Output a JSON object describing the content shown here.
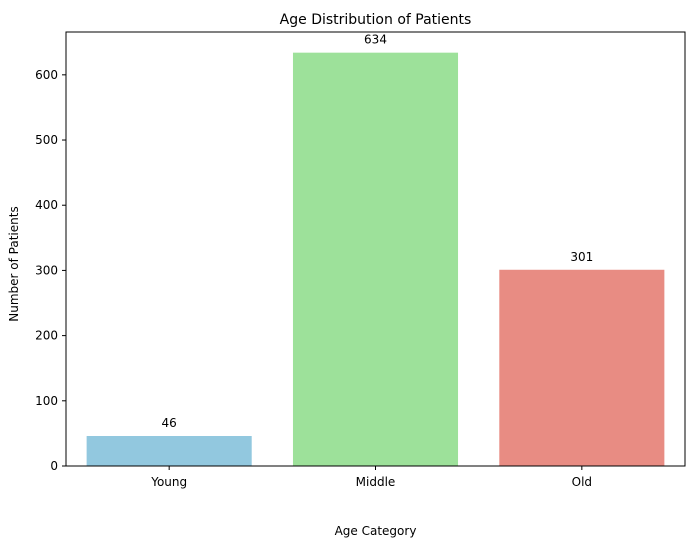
{
  "chart_data": {
    "type": "bar",
    "title": "Age Distribution of Patients",
    "xlabel": "Age Category",
    "ylabel": "Number of Patients",
    "categories": [
      "Young",
      "Middle",
      "Old"
    ],
    "values": [
      46,
      634,
      301
    ],
    "colors": [
      "#92c8df",
      "#9de19a",
      "#e88c83"
    ],
    "ylim": [
      0,
      665.7
    ],
    "yticks": [
      0,
      100,
      200,
      300,
      400,
      500,
      600
    ],
    "data_labels": [
      "46",
      "634",
      "301"
    ],
    "grid": false
  }
}
